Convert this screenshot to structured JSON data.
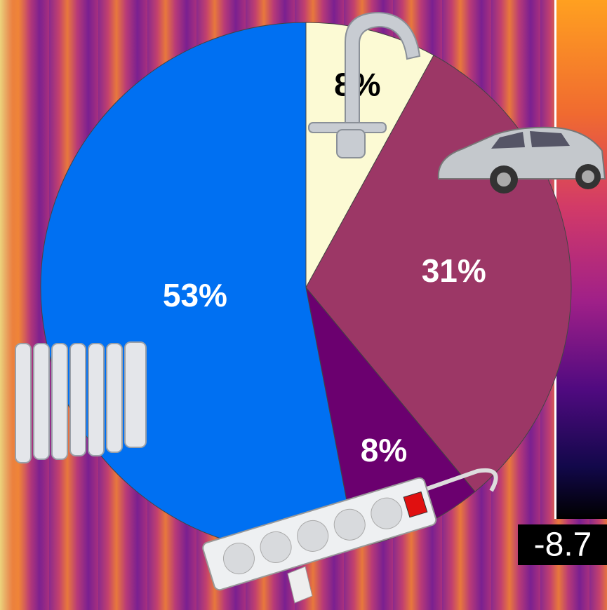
{
  "chart_data": {
    "type": "pie",
    "values": [
      8,
      31,
      8,
      53
    ],
    "value_labels": [
      "8%",
      "31%",
      "8%",
      "53%"
    ],
    "colors": [
      "#fcfad4",
      "#9c3766",
      "#6b006f",
      "#0070f2"
    ],
    "annotation": "-8.7"
  }
}
